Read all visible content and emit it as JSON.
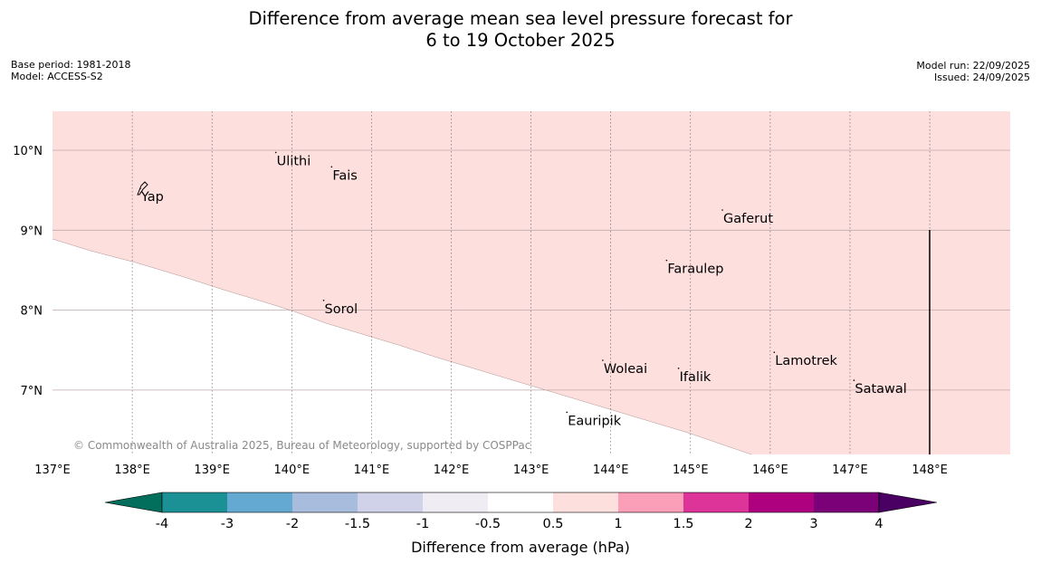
{
  "title": {
    "line1": "Difference from average mean sea level pressure forecast for",
    "line2": "6 to 19 October 2025"
  },
  "info": {
    "base_period": "Base period: 1981-2018",
    "model": "Model: ACCESS-S2",
    "model_run": "Model run: 22/09/2025",
    "issued": "Issued: 24/09/2025"
  },
  "map": {
    "lon_ticks": [
      "137°E",
      "138°E",
      "139°E",
      "140°E",
      "141°E",
      "142°E",
      "143°E",
      "144°E",
      "145°E",
      "146°E",
      "147°E",
      "148°E"
    ],
    "lat_ticks": [
      "10°N",
      "9°N",
      "8°N",
      "7°N"
    ],
    "places": [
      {
        "name": "Yap",
        "lon": 138.1,
        "lat": 9.5
      },
      {
        "name": "Ulithi",
        "lon": 139.8,
        "lat": 9.95
      },
      {
        "name": "Fais",
        "lon": 140.5,
        "lat": 9.77
      },
      {
        "name": "Sorol",
        "lon": 140.4,
        "lat": 8.1
      },
      {
        "name": "Gaferut",
        "lon": 145.4,
        "lat": 9.23
      },
      {
        "name": "Faraulep",
        "lon": 144.7,
        "lat": 8.6
      },
      {
        "name": "Woleai",
        "lon": 143.9,
        "lat": 7.35
      },
      {
        "name": "Ifalik",
        "lon": 144.85,
        "lat": 7.25
      },
      {
        "name": "Lamotrek",
        "lon": 146.05,
        "lat": 7.45
      },
      {
        "name": "Satawal",
        "lon": 147.05,
        "lat": 7.1
      },
      {
        "name": "Eauripik",
        "lon": 143.45,
        "lat": 6.7
      }
    ],
    "shaded_anomaly_range": "0.5 to 1",
    "copyright": "© Commonwealth of Australia 2025, Bureau of Meteorology, supported by COSPPac"
  },
  "colorbar": {
    "label": "Difference from average (hPa)",
    "ticks": [
      "-4",
      "-3",
      "-2",
      "-1.5",
      "-1",
      "-0.5",
      "0.5",
      "1",
      "1.5",
      "2",
      "3",
      "4"
    ],
    "colors": {
      "below_-4": "#016f5b",
      "-4_to_-3": "#1b9196",
      "-3_to_-2": "#63a9d1",
      "-2_to_-1.5": "#a8bcde",
      "-1.5_to_-1": "#cfd2e8",
      "-1_to_-0.5": "#efecf4",
      "-0.5_to_0.5": "#ffffff",
      "0.5_to_1": "#fde0de",
      "1_to_1.5": "#fa9fb7",
      "1.5_to_2": "#dd3499",
      "2_to_3": "#ad0180",
      "3_to_4": "#7a0177",
      "above_4": "#4a0063"
    }
  }
}
